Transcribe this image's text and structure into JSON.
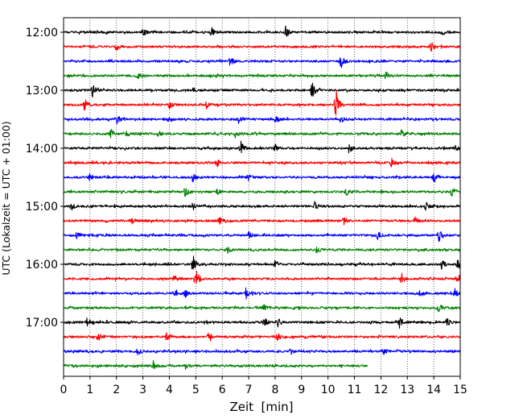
{
  "chart_data": {
    "type": "line",
    "xlabel": "Zeit  [min]",
    "ylabel": "UTC (Lokalzeit = UTC + 01:00)",
    "xlim": [
      0,
      15
    ],
    "x_ticks": [
      "0",
      "1",
      "2",
      "3",
      "4",
      "5",
      "6",
      "7",
      "8",
      "9",
      "10",
      "11",
      "12",
      "13",
      "14",
      "15"
    ],
    "y_ticks": [
      "12:00",
      "13:00",
      "14:00",
      "15:00",
      "16:00",
      "17:00"
    ],
    "grid": "vertical dotted lines at each minute",
    "trace_colors": [
      "#000000",
      "#ff0000",
      "#0000ff",
      "#008000"
    ],
    "traces": [
      {
        "start": "12:00",
        "color": "#000000",
        "end_min": 15,
        "events": [
          {
            "t": 3.0,
            "a": 0.5
          },
          {
            "t": 5.6,
            "a": 0.6
          },
          {
            "t": 8.4,
            "a": 0.9
          },
          {
            "t": 14.3,
            "a": 0.4
          }
        ]
      },
      {
        "start": "12:15",
        "color": "#ff0000",
        "end_min": 15,
        "events": [
          {
            "t": 2.0,
            "a": 0.5
          },
          {
            "t": 13.9,
            "a": 0.7
          }
        ]
      },
      {
        "start": "12:30",
        "color": "#0000ff",
        "end_min": 15,
        "events": [
          {
            "t": 6.3,
            "a": 0.6
          },
          {
            "t": 10.5,
            "a": 0.9
          }
        ]
      },
      {
        "start": "12:45",
        "color": "#008000",
        "end_min": 15,
        "events": [
          {
            "t": 2.8,
            "a": 0.4
          },
          {
            "t": 12.2,
            "a": 0.5
          }
        ]
      },
      {
        "start": "13:00",
        "color": "#000000",
        "end_min": 15,
        "events": [
          {
            "t": 1.1,
            "a": 0.8
          },
          {
            "t": 4.9,
            "a": 0.5
          },
          {
            "t": 9.4,
            "a": 1.1
          }
        ]
      },
      {
        "start": "13:15",
        "color": "#ff0000",
        "end_min": 15,
        "events": [
          {
            "t": 0.8,
            "a": 0.8
          },
          {
            "t": 4.0,
            "a": 0.5
          },
          {
            "t": 5.4,
            "a": 0.5
          },
          {
            "t": 10.3,
            "a": 2.6
          }
        ]
      },
      {
        "start": "13:30",
        "color": "#0000ff",
        "end_min": 15,
        "events": [
          {
            "t": 2.0,
            "a": 0.9
          },
          {
            "t": 4.0,
            "a": 0.5
          },
          {
            "t": 6.6,
            "a": 0.6
          },
          {
            "t": 8.0,
            "a": 0.5
          },
          {
            "t": 10.5,
            "a": 0.5
          }
        ]
      },
      {
        "start": "13:45",
        "color": "#008000",
        "end_min": 15,
        "events": [
          {
            "t": 1.8,
            "a": 0.6
          },
          {
            "t": 2.4,
            "a": 0.5
          },
          {
            "t": 3.6,
            "a": 0.4
          },
          {
            "t": 6.5,
            "a": 0.5
          },
          {
            "t": 12.8,
            "a": 0.5
          }
        ]
      },
      {
        "start": "14:00",
        "color": "#000000",
        "end_min": 15,
        "events": [
          {
            "t": 6.7,
            "a": 1.0
          },
          {
            "t": 8.0,
            "a": 0.6
          },
          {
            "t": 10.8,
            "a": 0.6
          },
          {
            "t": 14.8,
            "a": 0.6
          }
        ]
      },
      {
        "start": "14:15",
        "color": "#ff0000",
        "end_min": 15,
        "events": [
          {
            "t": 5.8,
            "a": 0.6
          },
          {
            "t": 12.4,
            "a": 0.6
          }
        ]
      },
      {
        "start": "14:30",
        "color": "#0000ff",
        "end_min": 15,
        "events": [
          {
            "t": 1.0,
            "a": 0.5
          },
          {
            "t": 4.9,
            "a": 0.7
          },
          {
            "t": 7.0,
            "a": 0.4
          },
          {
            "t": 14.0,
            "a": 0.8
          }
        ]
      },
      {
        "start": "14:45",
        "color": "#008000",
        "end_min": 15,
        "events": [
          {
            "t": 4.6,
            "a": 0.7
          },
          {
            "t": 5.8,
            "a": 0.6
          },
          {
            "t": 10.7,
            "a": 0.5
          },
          {
            "t": 14.7,
            "a": 0.7
          }
        ]
      },
      {
        "start": "15:00",
        "color": "#000000",
        "end_min": 15,
        "events": [
          {
            "t": 0.3,
            "a": 0.6
          },
          {
            "t": 4.9,
            "a": 0.5
          },
          {
            "t": 9.5,
            "a": 0.6
          },
          {
            "t": 13.7,
            "a": 0.5
          }
        ]
      },
      {
        "start": "15:15",
        "color": "#ff0000",
        "end_min": 15,
        "events": [
          {
            "t": 2.6,
            "a": 0.5
          },
          {
            "t": 5.9,
            "a": 0.4
          },
          {
            "t": 10.6,
            "a": 0.5
          },
          {
            "t": 13.3,
            "a": 0.6
          }
        ]
      },
      {
        "start": "15:30",
        "color": "#0000ff",
        "end_min": 15,
        "events": [
          {
            "t": 0.5,
            "a": 0.6
          },
          {
            "t": 7.0,
            "a": 0.5
          },
          {
            "t": 11.9,
            "a": 0.6
          },
          {
            "t": 14.2,
            "a": 0.9
          }
        ]
      },
      {
        "start": "15:45",
        "color": "#008000",
        "end_min": 15,
        "events": [
          {
            "t": 6.2,
            "a": 0.4
          },
          {
            "t": 9.6,
            "a": 0.4
          }
        ]
      },
      {
        "start": "16:00",
        "color": "#000000",
        "end_min": 15,
        "events": [
          {
            "t": 4.9,
            "a": 1.2
          },
          {
            "t": 8.0,
            "a": 0.5
          },
          {
            "t": 14.3,
            "a": 0.6
          },
          {
            "t": 14.9,
            "a": 0.7
          }
        ]
      },
      {
        "start": "16:15",
        "color": "#ff0000",
        "end_min": 15,
        "events": [
          {
            "t": 4.2,
            "a": 0.8
          },
          {
            "t": 5.0,
            "a": 1.5
          },
          {
            "t": 12.8,
            "a": 0.7
          },
          {
            "t": 14.9,
            "a": 0.9
          }
        ]
      },
      {
        "start": "16:30",
        "color": "#0000ff",
        "end_min": 15,
        "events": [
          {
            "t": 4.2,
            "a": 0.6
          },
          {
            "t": 4.6,
            "a": 0.5
          },
          {
            "t": 6.9,
            "a": 0.7
          },
          {
            "t": 13.5,
            "a": 0.6
          },
          {
            "t": 14.8,
            "a": 0.6
          }
        ]
      },
      {
        "start": "16:45",
        "color": "#008000",
        "end_min": 15,
        "events": [
          {
            "t": 7.6,
            "a": 0.5
          },
          {
            "t": 14.2,
            "a": 0.6
          }
        ]
      },
      {
        "start": "17:00",
        "color": "#000000",
        "end_min": 15,
        "events": [
          {
            "t": 0.9,
            "a": 0.6
          },
          {
            "t": 7.6,
            "a": 0.6
          },
          {
            "t": 8.1,
            "a": 0.7
          },
          {
            "t": 12.7,
            "a": 0.7
          },
          {
            "t": 14.5,
            "a": 0.5
          }
        ]
      },
      {
        "start": "17:15",
        "color": "#ff0000",
        "end_min": 15,
        "events": [
          {
            "t": 1.3,
            "a": 0.5
          },
          {
            "t": 3.9,
            "a": 0.7
          },
          {
            "t": 5.5,
            "a": 0.7
          },
          {
            "t": 8.1,
            "a": 0.5
          }
        ]
      },
      {
        "start": "17:30",
        "color": "#0000ff",
        "end_min": 15,
        "events": [
          {
            "t": 2.8,
            "a": 0.5
          },
          {
            "t": 8.6,
            "a": 0.4
          },
          {
            "t": 12.1,
            "a": 0.4
          }
        ]
      },
      {
        "start": "17:45",
        "color": "#008000",
        "end_min": 11.5,
        "events": [
          {
            "t": 3.4,
            "a": 0.5
          },
          {
            "t": 4.6,
            "a": 0.4
          }
        ]
      }
    ]
  }
}
